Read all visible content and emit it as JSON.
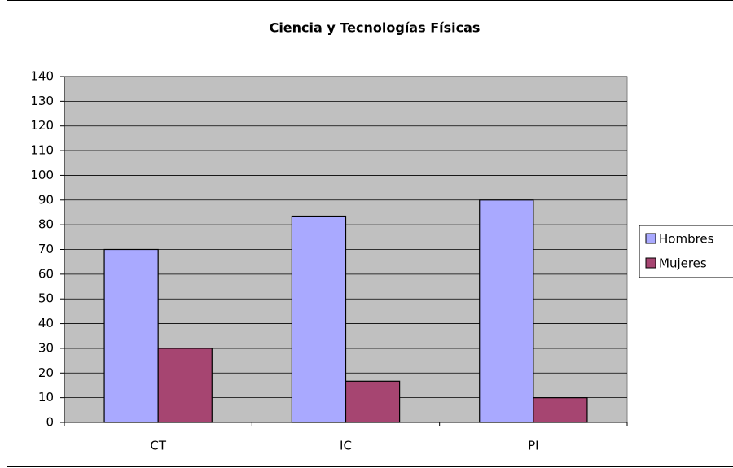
{
  "chart_data": {
    "type": "bar",
    "title": "Ciencia y Tecnologías Físicas",
    "categories": [
      "CT",
      "IC",
      "PI"
    ],
    "series": [
      {
        "name": "Hombres",
        "color": "#a9a9ff",
        "values": [
          70,
          83.5,
          90
        ]
      },
      {
        "name": "Mujeres",
        "color": "#a64571",
        "values": [
          30,
          16.7,
          10
        ]
      }
    ],
    "ylim": [
      0,
      140
    ],
    "yticks": [
      0,
      10,
      20,
      30,
      40,
      50,
      60,
      70,
      80,
      90,
      100,
      110,
      120,
      130,
      140
    ],
    "grid": true,
    "legend": "right"
  }
}
